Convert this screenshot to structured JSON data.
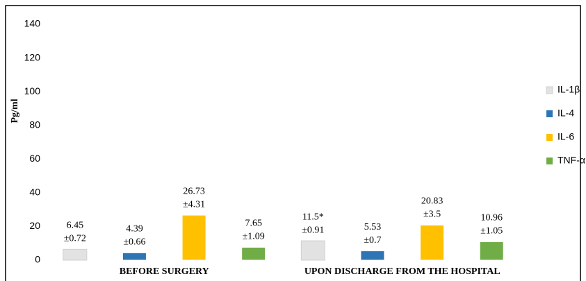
{
  "chart_data": {
    "type": "bar",
    "categories": [
      "BEFORE SURGERY",
      "UPON DISCHARGE FROM THE HOSPITAL"
    ],
    "y_label": "Pg/ml",
    "ylim": [
      0,
      140
    ],
    "yticks": [
      0,
      20,
      40,
      60,
      80,
      100,
      120,
      140
    ],
    "grid": false,
    "legend": "right",
    "series": [
      {
        "name": "IL-1β",
        "color": "#e2e2e2",
        "values": [
          6.45,
          11.5
        ],
        "value_labels": [
          "6.45",
          "11.5*"
        ],
        "error_labels": [
          "±0.72",
          "±0.91"
        ]
      },
      {
        "name": "IL-4",
        "color": "#2e75b6",
        "values": [
          4.39,
          5.53
        ],
        "value_labels": [
          "4.39",
          "5.53"
        ],
        "error_labels": [
          "±0.66",
          "±0.7"
        ]
      },
      {
        "name": "IL-6",
        "color": "#ffc000",
        "values": [
          26.73,
          20.83
        ],
        "value_labels": [
          "26.73",
          "20.83"
        ],
        "error_labels": [
          "±4.31",
          "±3.5"
        ]
      },
      {
        "name": "TNF-α",
        "color": "#70ad47",
        "values": [
          7.65,
          10.96
        ],
        "value_labels": [
          "7.65",
          "10.96"
        ],
        "error_labels": [
          "±1.09",
          "±1.05"
        ]
      }
    ]
  }
}
